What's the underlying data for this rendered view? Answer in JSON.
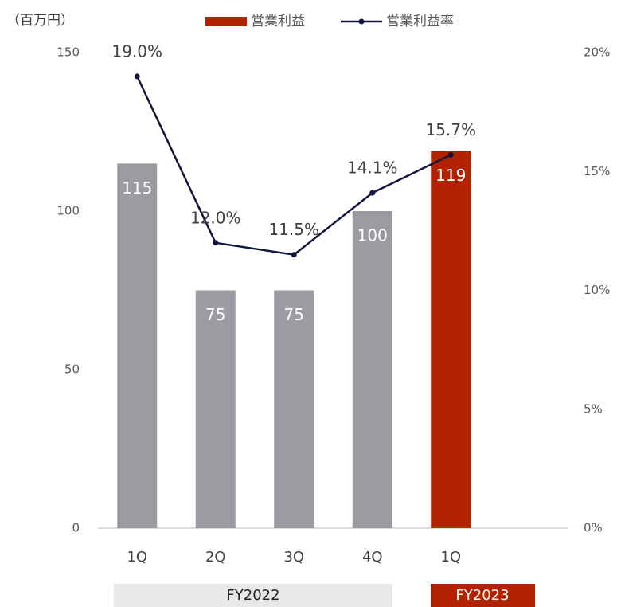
{
  "chart_data": {
    "type": "bar-line",
    "unit_label": "（百万円）",
    "categories": [
      "1Q",
      "2Q",
      "3Q",
      "4Q",
      "1Q"
    ],
    "groups": [
      "FY2022",
      "FY2023"
    ],
    "series": [
      {
        "name": "営業利益",
        "type": "bar",
        "color": "#b22200",
        "colors": [
          "#9c9ba1",
          "#9c9ba1",
          "#9c9ba1",
          "#9c9ba1",
          "#b22200"
        ],
        "values": [
          115,
          75,
          75,
          100,
          119
        ]
      },
      {
        "name": "営業利益率",
        "type": "line",
        "axis": "y2",
        "color": "#12163f",
        "values": [
          19.0,
          12.0,
          11.5,
          14.1,
          15.7
        ],
        "value_labels": [
          "19.0%",
          "12.0%",
          "11.5%",
          "14.1%",
          "15.7%"
        ]
      }
    ],
    "ylim": [
      0,
      150
    ],
    "yticks": [
      0,
      50,
      100,
      150
    ],
    "y2lim": [
      0,
      20
    ],
    "y2ticks": [
      {
        "value": 0,
        "label": "0%"
      },
      {
        "value": 5,
        "label": "5%"
      },
      {
        "value": 10,
        "label": "10%"
      },
      {
        "value": 15,
        "label": "15%"
      },
      {
        "value": 20,
        "label": "20%"
      }
    ],
    "grid": false
  }
}
